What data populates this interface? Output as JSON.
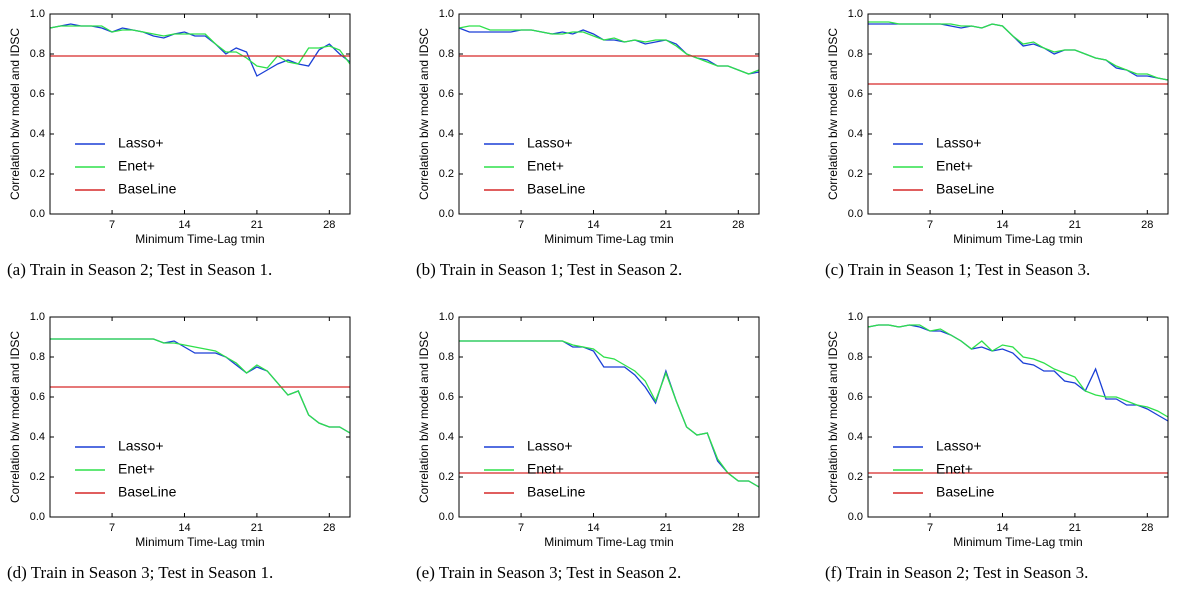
{
  "chart_data": [
    {
      "type": "line",
      "caption": "(a) Train in Season 2; Test in Season 1.",
      "ylabel": "Correlation b/w model and IDSC",
      "xlabel": "Minimum Time-Lag τmin",
      "legend": "lower left",
      "x": [
        1,
        2,
        3,
        4,
        5,
        6,
        7,
        8,
        9,
        10,
        11,
        12,
        13,
        14,
        15,
        16,
        17,
        18,
        19,
        20,
        21,
        22,
        23,
        24,
        25,
        26,
        27,
        28,
        29,
        30
      ],
      "xlim": [
        1,
        30
      ],
      "xticks": [
        7,
        14,
        21,
        28
      ],
      "ylim": [
        0,
        1
      ],
      "yticks": [
        {
          "value": 0,
          "label": "0.0"
        },
        0.2,
        0.4,
        0.6,
        0.8,
        {
          "value": 1,
          "label": "1.0"
        }
      ],
      "series": [
        {
          "name": "Lasso+",
          "color": "#1a3fd6",
          "values": [
            0.93,
            0.94,
            0.95,
            0.94,
            0.94,
            0.93,
            0.91,
            0.93,
            0.92,
            0.91,
            0.89,
            0.88,
            0.9,
            0.91,
            0.89,
            0.89,
            0.85,
            0.8,
            0.83,
            0.81,
            0.69,
            0.72,
            0.75,
            0.77,
            0.75,
            0.74,
            0.82,
            0.85,
            0.8,
            0.76
          ]
        },
        {
          "name": "Enet+",
          "color": "#2ee04a",
          "values": [
            0.93,
            0.94,
            0.94,
            0.94,
            0.94,
            0.94,
            0.91,
            0.92,
            0.92,
            0.91,
            0.9,
            0.89,
            0.9,
            0.9,
            0.9,
            0.9,
            0.85,
            0.81,
            0.81,
            0.78,
            0.74,
            0.73,
            0.79,
            0.76,
            0.75,
            0.83,
            0.83,
            0.84,
            0.82,
            0.75
          ]
        },
        {
          "name": "BaseLine",
          "color": "#d62828",
          "values": [
            0.79,
            0.79,
            0.79,
            0.79,
            0.79,
            0.79,
            0.79,
            0.79,
            0.79,
            0.79,
            0.79,
            0.79,
            0.79,
            0.79,
            0.79,
            0.79,
            0.79,
            0.79,
            0.79,
            0.79,
            0.79,
            0.79,
            0.79,
            0.79,
            0.79,
            0.79,
            0.79,
            0.79,
            0.79,
            0.79
          ]
        }
      ]
    },
    {
      "type": "line",
      "caption": "(b) Train in Season 1; Test in Season 2.",
      "ylabel": "Correlation b/w model and IDSC",
      "xlabel": "Minimum Time-Lag τmin",
      "legend": "lower left",
      "x": [
        1,
        2,
        3,
        4,
        5,
        6,
        7,
        8,
        9,
        10,
        11,
        12,
        13,
        14,
        15,
        16,
        17,
        18,
        19,
        20,
        21,
        22,
        23,
        24,
        25,
        26,
        27,
        28,
        29,
        30
      ],
      "xlim": [
        1,
        30
      ],
      "xticks": [
        7,
        14,
        21,
        28
      ],
      "ylim": [
        0,
        1
      ],
      "yticks": [
        {
          "value": 0,
          "label": "0.0"
        },
        0.2,
        0.4,
        0.6,
        0.8,
        {
          "value": 1,
          "label": "1.0"
        }
      ],
      "series": [
        {
          "name": "Lasso+",
          "color": "#1a3fd6",
          "values": [
            0.93,
            0.91,
            0.91,
            0.91,
            0.91,
            0.91,
            0.92,
            0.92,
            0.91,
            0.9,
            0.91,
            0.9,
            0.92,
            0.9,
            0.87,
            0.87,
            0.86,
            0.87,
            0.85,
            0.86,
            0.87,
            0.85,
            0.8,
            0.78,
            0.77,
            0.74,
            0.74,
            0.72,
            0.7,
            0.71
          ]
        },
        {
          "name": "Enet+",
          "color": "#2ee04a",
          "values": [
            0.93,
            0.94,
            0.94,
            0.92,
            0.92,
            0.92,
            0.92,
            0.92,
            0.91,
            0.9,
            0.9,
            0.91,
            0.91,
            0.89,
            0.87,
            0.88,
            0.86,
            0.87,
            0.86,
            0.87,
            0.87,
            0.84,
            0.8,
            0.78,
            0.76,
            0.74,
            0.74,
            0.72,
            0.7,
            0.72
          ]
        },
        {
          "name": "BaseLine",
          "color": "#d62828",
          "values": [
            0.79,
            0.79,
            0.79,
            0.79,
            0.79,
            0.79,
            0.79,
            0.79,
            0.79,
            0.79,
            0.79,
            0.79,
            0.79,
            0.79,
            0.79,
            0.79,
            0.79,
            0.79,
            0.79,
            0.79,
            0.79,
            0.79,
            0.79,
            0.79,
            0.79,
            0.79,
            0.79,
            0.79,
            0.79,
            0.79
          ]
        }
      ]
    },
    {
      "type": "line",
      "caption": "(c) Train in Season 1; Test in Season 3.",
      "ylabel": "Correlation b/w model and IDSC",
      "xlabel": "Minimum Time-Lag τmin",
      "legend": "lower left",
      "x": [
        1,
        2,
        3,
        4,
        5,
        6,
        7,
        8,
        9,
        10,
        11,
        12,
        13,
        14,
        15,
        16,
        17,
        18,
        19,
        20,
        21,
        22,
        23,
        24,
        25,
        26,
        27,
        28,
        29,
        30
      ],
      "xlim": [
        1,
        30
      ],
      "xticks": [
        7,
        14,
        21,
        28
      ],
      "ylim": [
        0,
        1
      ],
      "yticks": [
        {
          "value": 0,
          "label": "0.0"
        },
        0.2,
        0.4,
        0.6,
        0.8,
        {
          "value": 1,
          "label": "1.0"
        }
      ],
      "series": [
        {
          "name": "Lasso+",
          "color": "#1a3fd6",
          "values": [
            0.95,
            0.95,
            0.95,
            0.95,
            0.95,
            0.95,
            0.95,
            0.95,
            0.94,
            0.93,
            0.94,
            0.93,
            0.95,
            0.94,
            0.89,
            0.84,
            0.85,
            0.83,
            0.8,
            0.82,
            0.82,
            0.8,
            0.78,
            0.77,
            0.73,
            0.72,
            0.69,
            0.69,
            0.68,
            0.67
          ]
        },
        {
          "name": "Enet+",
          "color": "#2ee04a",
          "values": [
            0.96,
            0.96,
            0.96,
            0.95,
            0.95,
            0.95,
            0.95,
            0.95,
            0.95,
            0.94,
            0.94,
            0.93,
            0.95,
            0.94,
            0.89,
            0.85,
            0.86,
            0.83,
            0.81,
            0.82,
            0.82,
            0.8,
            0.78,
            0.77,
            0.74,
            0.72,
            0.7,
            0.7,
            0.68,
            0.67
          ]
        },
        {
          "name": "BaseLine",
          "color": "#d62828",
          "values": [
            0.65,
            0.65,
            0.65,
            0.65,
            0.65,
            0.65,
            0.65,
            0.65,
            0.65,
            0.65,
            0.65,
            0.65,
            0.65,
            0.65,
            0.65,
            0.65,
            0.65,
            0.65,
            0.65,
            0.65,
            0.65,
            0.65,
            0.65,
            0.65,
            0.65,
            0.65,
            0.65,
            0.65,
            0.65,
            0.65
          ]
        }
      ]
    },
    {
      "type": "line",
      "caption": "(d) Train in Season 3; Test in Season 1.",
      "ylabel": "Correlation b/w model and IDSC",
      "xlabel": "Minimum Time-Lag τmin",
      "legend": "lower left",
      "x": [
        1,
        2,
        3,
        4,
        5,
        6,
        7,
        8,
        9,
        10,
        11,
        12,
        13,
        14,
        15,
        16,
        17,
        18,
        19,
        20,
        21,
        22,
        23,
        24,
        25,
        26,
        27,
        28,
        29,
        30
      ],
      "xlim": [
        1,
        30
      ],
      "xticks": [
        7,
        14,
        21,
        28
      ],
      "ylim": [
        0,
        1
      ],
      "yticks": [
        {
          "value": 0,
          "label": "0.0"
        },
        0.2,
        0.4,
        0.6,
        0.8,
        {
          "value": 1,
          "label": "1.0"
        }
      ],
      "series": [
        {
          "name": "Lasso+",
          "color": "#1a3fd6",
          "values": [
            0.89,
            0.89,
            0.89,
            0.89,
            0.89,
            0.89,
            0.89,
            0.89,
            0.89,
            0.89,
            0.89,
            0.87,
            0.88,
            0.85,
            0.82,
            0.82,
            0.82,
            0.8,
            0.76,
            0.72,
            0.75,
            0.73,
            0.67,
            0.61,
            0.63,
            0.51,
            0.47,
            0.45,
            0.45,
            0.42
          ]
        },
        {
          "name": "Enet+",
          "color": "#2ee04a",
          "values": [
            0.89,
            0.89,
            0.89,
            0.89,
            0.89,
            0.89,
            0.89,
            0.89,
            0.89,
            0.89,
            0.89,
            0.87,
            0.87,
            0.86,
            0.85,
            0.84,
            0.83,
            0.8,
            0.77,
            0.72,
            0.76,
            0.73,
            0.67,
            0.61,
            0.63,
            0.51,
            0.47,
            0.45,
            0.45,
            0.42
          ]
        },
        {
          "name": "BaseLine",
          "color": "#d62828",
          "values": [
            0.65,
            0.65,
            0.65,
            0.65,
            0.65,
            0.65,
            0.65,
            0.65,
            0.65,
            0.65,
            0.65,
            0.65,
            0.65,
            0.65,
            0.65,
            0.65,
            0.65,
            0.65,
            0.65,
            0.65,
            0.65,
            0.65,
            0.65,
            0.65,
            0.65,
            0.65,
            0.65,
            0.65,
            0.65,
            0.65
          ]
        }
      ]
    },
    {
      "type": "line",
      "caption": "(e) Train in Season 3; Test in Season 2.",
      "ylabel": "Correlation b/w model and IDSC",
      "xlabel": "Minimum Time-Lag τmin",
      "legend": "lower left",
      "x": [
        1,
        2,
        3,
        4,
        5,
        6,
        7,
        8,
        9,
        10,
        11,
        12,
        13,
        14,
        15,
        16,
        17,
        18,
        19,
        20,
        21,
        22,
        23,
        24,
        25,
        26,
        27,
        28,
        29,
        30
      ],
      "xlim": [
        1,
        30
      ],
      "xticks": [
        7,
        14,
        21,
        28
      ],
      "ylim": [
        0,
        1
      ],
      "yticks": [
        {
          "value": 0,
          "label": "0.0"
        },
        0.2,
        0.4,
        0.6,
        0.8,
        {
          "value": 1,
          "label": "1.0"
        }
      ],
      "series": [
        {
          "name": "Lasso+",
          "color": "#1a3fd6",
          "values": [
            0.88,
            0.88,
            0.88,
            0.88,
            0.88,
            0.88,
            0.88,
            0.88,
            0.88,
            0.88,
            0.88,
            0.85,
            0.85,
            0.83,
            0.75,
            0.75,
            0.75,
            0.71,
            0.65,
            0.57,
            0.73,
            0.58,
            0.45,
            0.41,
            0.42,
            0.28,
            0.22,
            0.18,
            0.18,
            0.15
          ]
        },
        {
          "name": "Enet+",
          "color": "#2ee04a",
          "values": [
            0.88,
            0.88,
            0.88,
            0.88,
            0.88,
            0.88,
            0.88,
            0.88,
            0.88,
            0.88,
            0.88,
            0.86,
            0.85,
            0.84,
            0.8,
            0.79,
            0.76,
            0.73,
            0.68,
            0.58,
            0.72,
            0.58,
            0.45,
            0.41,
            0.42,
            0.29,
            0.22,
            0.18,
            0.18,
            0.15
          ]
        },
        {
          "name": "BaseLine",
          "color": "#d62828",
          "values": [
            0.22,
            0.22,
            0.22,
            0.22,
            0.22,
            0.22,
            0.22,
            0.22,
            0.22,
            0.22,
            0.22,
            0.22,
            0.22,
            0.22,
            0.22,
            0.22,
            0.22,
            0.22,
            0.22,
            0.22,
            0.22,
            0.22,
            0.22,
            0.22,
            0.22,
            0.22,
            0.22,
            0.22,
            0.22,
            0.22
          ]
        }
      ]
    },
    {
      "type": "line",
      "caption": "(f) Train in Season 2; Test in Season 3.",
      "ylabel": "Correlation b/w model and IDSC",
      "xlabel": "Minimum Time-Lag τmin",
      "legend": "lower left",
      "x": [
        1,
        2,
        3,
        4,
        5,
        6,
        7,
        8,
        9,
        10,
        11,
        12,
        13,
        14,
        15,
        16,
        17,
        18,
        19,
        20,
        21,
        22,
        23,
        24,
        25,
        26,
        27,
        28,
        29,
        30
      ],
      "xlim": [
        1,
        30
      ],
      "xticks": [
        7,
        14,
        21,
        28
      ],
      "ylim": [
        0,
        1
      ],
      "yticks": [
        {
          "value": 0,
          "label": "0.0"
        },
        0.2,
        0.4,
        0.6,
        0.8,
        {
          "value": 1,
          "label": "1.0"
        }
      ],
      "series": [
        {
          "name": "Lasso+",
          "color": "#1a3fd6",
          "values": [
            0.95,
            0.96,
            0.96,
            0.95,
            0.96,
            0.95,
            0.93,
            0.93,
            0.91,
            0.88,
            0.84,
            0.85,
            0.83,
            0.84,
            0.82,
            0.77,
            0.76,
            0.73,
            0.73,
            0.68,
            0.67,
            0.63,
            0.74,
            0.59,
            0.59,
            0.56,
            0.56,
            0.54,
            0.51,
            0.48
          ]
        },
        {
          "name": "Enet+",
          "color": "#2ee04a",
          "values": [
            0.95,
            0.96,
            0.96,
            0.95,
            0.96,
            0.96,
            0.93,
            0.94,
            0.91,
            0.88,
            0.84,
            0.88,
            0.83,
            0.86,
            0.85,
            0.8,
            0.79,
            0.77,
            0.74,
            0.72,
            0.7,
            0.63,
            0.61,
            0.6,
            0.6,
            0.58,
            0.56,
            0.55,
            0.53,
            0.5
          ]
        },
        {
          "name": "BaseLine",
          "color": "#d62828",
          "values": [
            0.22,
            0.22,
            0.22,
            0.22,
            0.22,
            0.22,
            0.22,
            0.22,
            0.22,
            0.22,
            0.22,
            0.22,
            0.22,
            0.22,
            0.22,
            0.22,
            0.22,
            0.22,
            0.22,
            0.22,
            0.22,
            0.22,
            0.22,
            0.22,
            0.22,
            0.22,
            0.22,
            0.22,
            0.22,
            0.22
          ]
        }
      ]
    }
  ]
}
